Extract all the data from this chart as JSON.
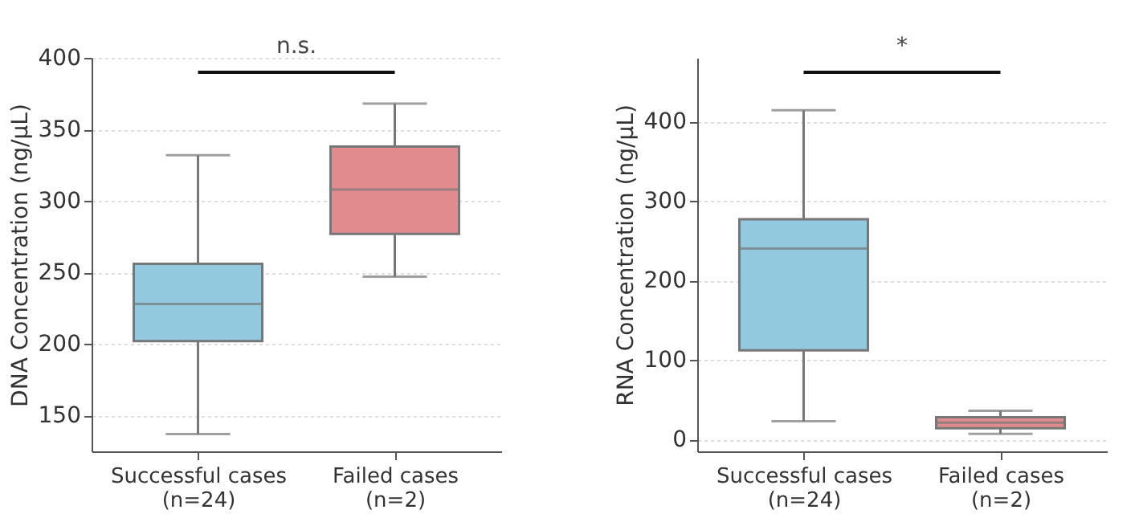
{
  "chart_data": [
    {
      "type": "box",
      "categories": [
        "Successful cases\n(n=24)",
        "Failed cases\n(n=2)"
      ],
      "ylabel": "DNA Concentration (ng/μL)",
      "ylim": [
        125,
        400
      ],
      "yticks": [
        150,
        200,
        250,
        300,
        350,
        400
      ],
      "grid": "y",
      "colors": [
        "#92c9df",
        "#e28b8e"
      ],
      "boxes": [
        {
          "low": 137,
          "q1": 202,
          "median": 228,
          "q3": 256,
          "high": 332
        },
        {
          "low": 247,
          "q1": 277,
          "median": 308,
          "q3": 338,
          "high": 368
        }
      ],
      "annotations": [
        "n.s."
      ]
    },
    {
      "type": "box",
      "categories": [
        "Successful cases\n(n=24)",
        "Failed cases\n(n=2)"
      ],
      "ylabel": "RNA Concentration (ng/μL)",
      "ylim": [
        -15,
        480
      ],
      "yticks": [
        0,
        100,
        200,
        300,
        400
      ],
      "grid": "y",
      "colors": [
        "#92c9df",
        "#e28b8e"
      ],
      "boxes": [
        {
          "low": 23,
          "q1": 112,
          "median": 240,
          "q3": 277,
          "high": 414
        },
        {
          "low": 7,
          "q1": 14,
          "median": 21,
          "q3": 28,
          "high": 36
        }
      ],
      "annotations": [
        "*"
      ]
    }
  ]
}
